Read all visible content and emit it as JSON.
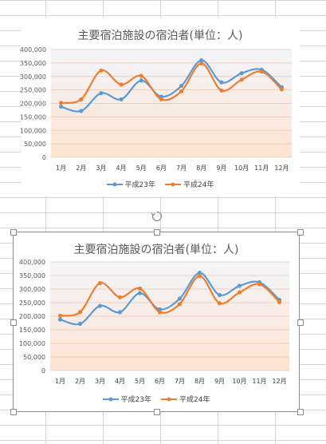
{
  "charts": [
    {
      "title": "主要宿泊施設の宿泊者(単位：人)",
      "selected": false,
      "legend": [
        "平成23年",
        "平成24年"
      ]
    },
    {
      "title": "主要宿泊施設の宿泊者(単位：人)",
      "selected": true,
      "legend": [
        "平成23年",
        "平成24年"
      ]
    }
  ],
  "chart_data": [
    {
      "type": "line",
      "title": "主要宿泊施設の宿泊者(単位：人)",
      "categories": [
        "1月",
        "2月",
        "3月",
        "4月",
        "5月",
        "6月",
        "7月",
        "8月",
        "9月",
        "10月",
        "11月",
        "12月"
      ],
      "series": [
        {
          "name": "平成23年",
          "color": "#5b9bd5",
          "values": [
            188000,
            172000,
            238000,
            215000,
            285000,
            225000,
            265000,
            360000,
            278000,
            312000,
            325000,
            260000
          ]
        },
        {
          "name": "平成24年",
          "color": "#ed7d31",
          "values": [
            202000,
            215000,
            322000,
            270000,
            302000,
            215000,
            245000,
            348000,
            248000,
            288000,
            318000,
            252000
          ]
        }
      ],
      "ylim": [
        0,
        400000
      ],
      "yticks": [
        "0",
        "50,000",
        "100,000",
        "150,000",
        "200,000",
        "250,000",
        "300,000",
        "350,000",
        "400,000"
      ],
      "grid": true,
      "legend_position": "bottom",
      "smooth": true
    },
    {
      "type": "line",
      "title": "主要宿泊施設の宿泊者(単位：人)",
      "categories": [
        "1月",
        "2月",
        "3月",
        "4月",
        "5月",
        "6月",
        "7月",
        "8月",
        "9月",
        "10月",
        "11月",
        "12月"
      ],
      "series": [
        {
          "name": "平成23年",
          "color": "#5b9bd5",
          "values": [
            188000,
            172000,
            238000,
            215000,
            285000,
            225000,
            265000,
            360000,
            278000,
            312000,
            325000,
            260000
          ]
        },
        {
          "name": "平成24年",
          "color": "#ed7d31",
          "values": [
            202000,
            215000,
            322000,
            270000,
            302000,
            215000,
            245000,
            348000,
            248000,
            288000,
            318000,
            252000
          ]
        }
      ],
      "ylim": [
        0,
        400000
      ],
      "yticks": [
        "0",
        "50,000",
        "100,000",
        "150,000",
        "200,000",
        "250,000",
        "300,000",
        "350,000",
        "400,000"
      ],
      "grid": true,
      "legend_position": "bottom",
      "smooth": true
    }
  ]
}
